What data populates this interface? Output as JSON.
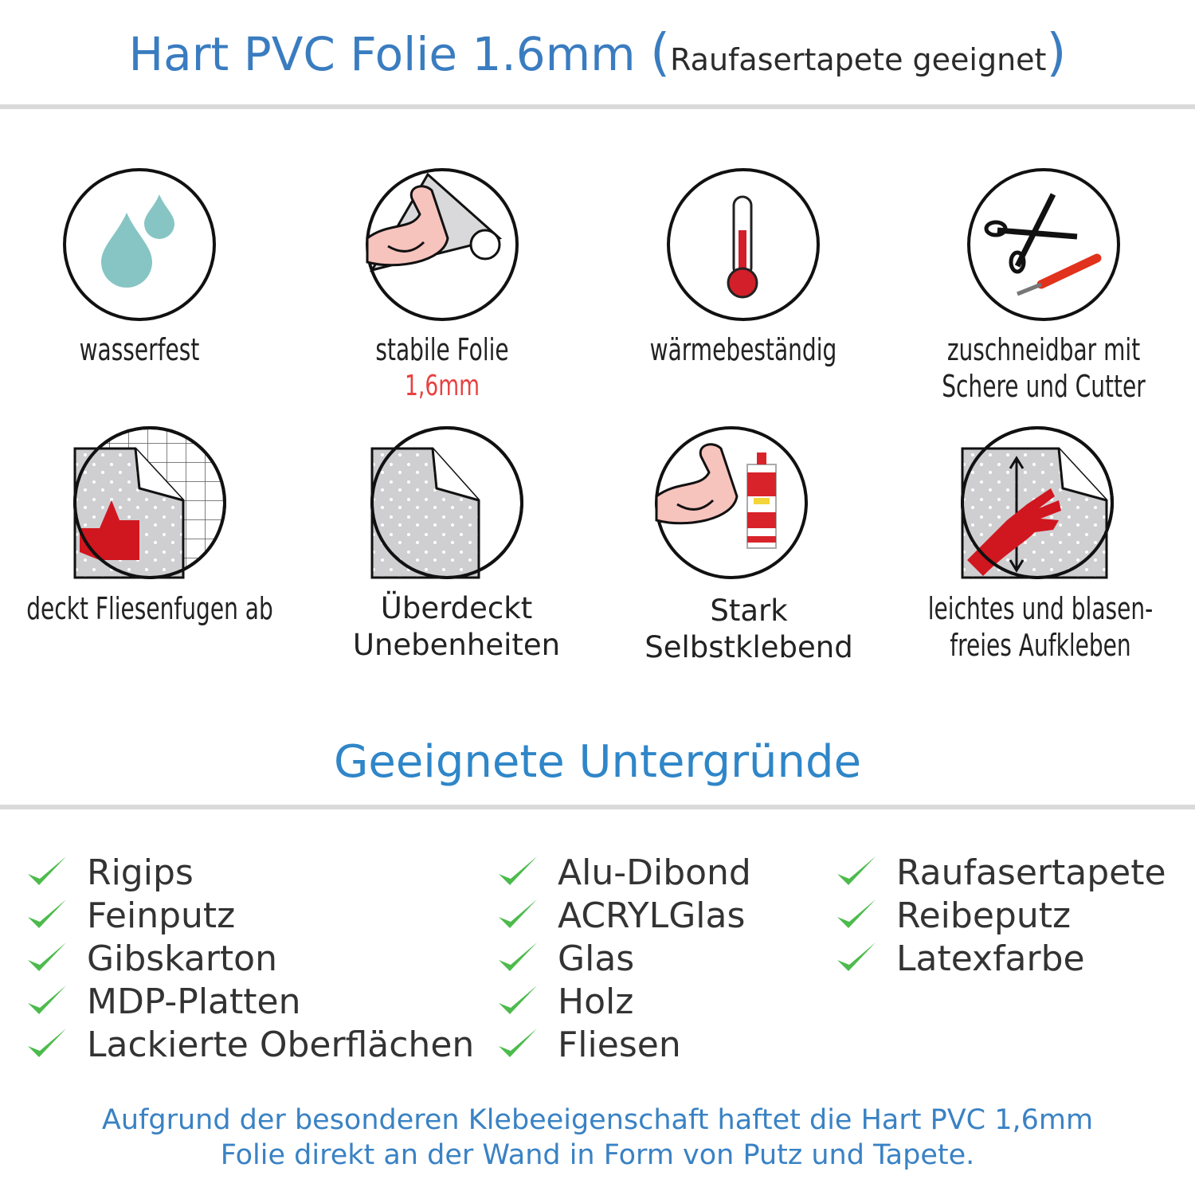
{
  "header": {
    "title": "Hart PVC Folie 1.6mm",
    "paren_open": "(",
    "subtitle": "Raufasertapete geeignet",
    "paren_close": ")"
  },
  "features": [
    {
      "icon": "water-drops-icon",
      "lines": [
        "wasserfest"
      ]
    },
    {
      "icon": "strong-film-icon",
      "lines": [
        "stabile Folie"
      ],
      "highlight": "1,6mm"
    },
    {
      "icon": "thermometer-icon",
      "lines": [
        "wärmebeständig"
      ]
    },
    {
      "icon": "scissors-cutter-icon",
      "lines": [
        "zuschneidbar mit",
        "Schere und Cutter"
      ]
    },
    {
      "icon": "tile-cover-icon",
      "lines": [
        "deckt Fliesenfugen ab"
      ]
    },
    {
      "icon": "film-peel-icon",
      "lines": [
        "Überdeckt",
        "Unebenheiten"
      ]
    },
    {
      "icon": "strong-adhesive-icon",
      "lines": [
        "Stark",
        "Selbstklebend"
      ]
    },
    {
      "icon": "hand-smooth-icon",
      "lines": [
        "leichtes und blasen-",
        "freies Aufkleben"
      ]
    }
  ],
  "surfaces": {
    "heading": "Geeignete Untergründe",
    "columns": [
      [
        "Rigips",
        "Feinputz",
        "Gibskarton",
        "MDP-Platten",
        "Lackierte Oberflächen"
      ],
      [
        "Alu-Dibond",
        "ACRYLGlas",
        "Glas",
        "Holz",
        "Fliesen"
      ],
      [
        "Raufasertapete",
        "Reibeputz",
        "Latexfarbe"
      ]
    ]
  },
  "footer": {
    "lines": [
      "Aufgrund der besonderen Klebeeigenschaft haftet die Hart PVC 1,6mm",
      "Folie direkt an der Wand in Form von Putz und Tapete."
    ]
  },
  "colors": {
    "title_blue": "#3a7cc0",
    "heading_blue": "#2f86c8",
    "check_green": "#4cbb4c",
    "accent_red": "#e84141",
    "rule_gray": "#dadada"
  }
}
